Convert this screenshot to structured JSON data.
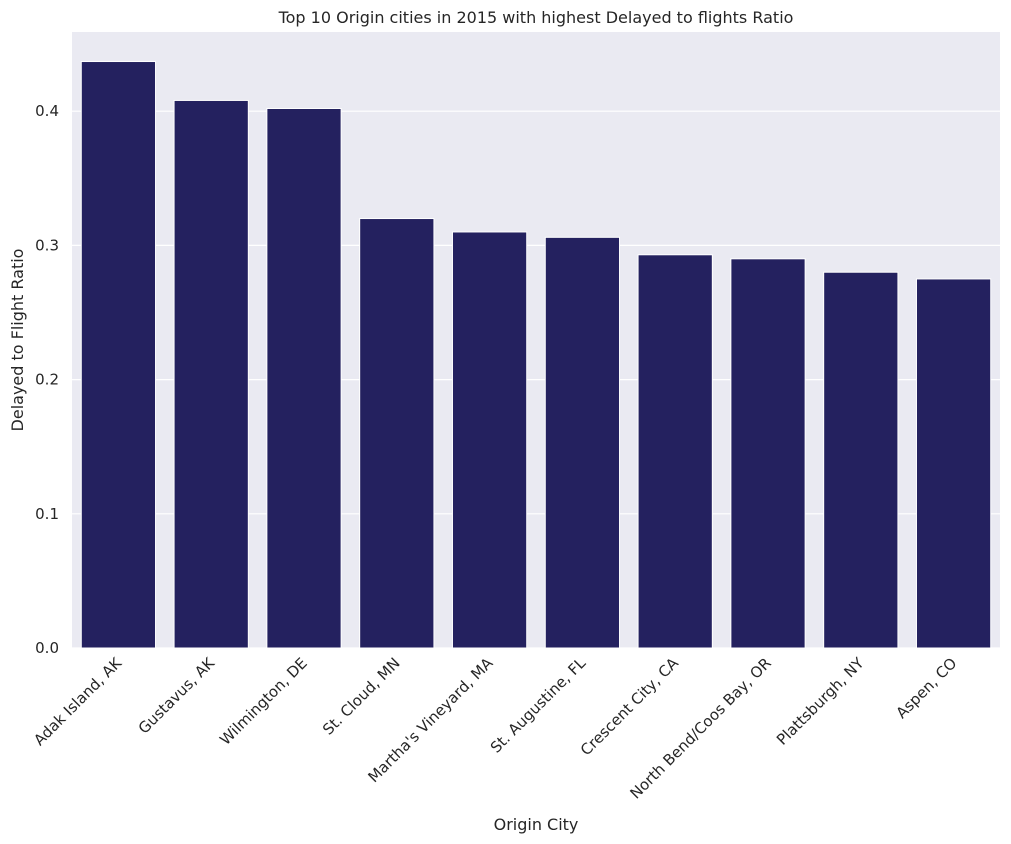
{
  "chart_data": {
    "type": "bar",
    "title": "Top 10 Origin cities in 2015 with highest Delayed to flights Ratio",
    "xlabel": "Origin City",
    "ylabel": "Delayed to Flight Ratio",
    "categories": [
      "Adak Island, AK",
      "Gustavus, AK",
      "Wilmington, DE",
      "St. Cloud, MN",
      "Martha's Vineyard, MA",
      "St. Augustine, FL",
      "Crescent City, CA",
      "North Bend/Coos Bay, OR",
      "Plattsburgh, NY",
      "Aspen, CO"
    ],
    "values": [
      0.437,
      0.408,
      0.402,
      0.32,
      0.31,
      0.306,
      0.293,
      0.29,
      0.28,
      0.275
    ],
    "yticks": [
      "0.0",
      "0.1",
      "0.2",
      "0.3",
      "0.4"
    ],
    "ylim": [
      0,
      0.459
    ],
    "grid": true,
    "bar_color": "#24215f",
    "plot_background": "#eaeaf2",
    "grid_color": "#ffffff"
  }
}
